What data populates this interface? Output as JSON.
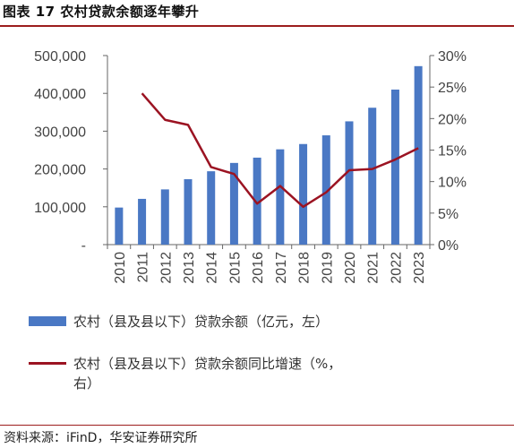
{
  "header": {
    "title": "图表 17 农村贷款余额逐年攀升"
  },
  "chart_data": {
    "type": "bar",
    "categories": [
      "2010",
      "2011",
      "2012",
      "2013",
      "2014",
      "2015",
      "2016",
      "2017",
      "2018",
      "2019",
      "2020",
      "2021",
      "2022",
      "2023"
    ],
    "series": [
      {
        "name": "农村（县及县以下）贷款余额（亿元，左）",
        "type": "bar",
        "axis": "left",
        "values": [
          98000,
          121000,
          146000,
          173000,
          194000,
          216000,
          230000,
          252000,
          266000,
          289000,
          326000,
          362000,
          410000,
          472000
        ]
      },
      {
        "name": "农村（县及县以下）贷款余额同比增速（%，右）",
        "type": "line",
        "axis": "right",
        "values": [
          null,
          24.0,
          19.8,
          19.0,
          12.3,
          11.2,
          6.5,
          9.3,
          6.0,
          8.3,
          11.8,
          12.0,
          13.5,
          15.3
        ]
      }
    ],
    "y_left": {
      "ylim": [
        0,
        500000
      ],
      "ticks": [
        "-",
        "100,000",
        "200,000",
        "300,000",
        "400,000",
        "500,000"
      ]
    },
    "y_right": {
      "ylim": [
        0,
        30
      ],
      "ticks": [
        "0%",
        "5%",
        "10%",
        "15%",
        "20%",
        "25%",
        "30%"
      ]
    },
    "grid": false,
    "legend_position": "bottom",
    "colors": {
      "bar": "#4a78c4",
      "line": "#9b1322",
      "axis": "#666666"
    }
  },
  "legend": {
    "items": [
      {
        "label": "农村（县及县以下）贷款余额（亿元，左）"
      },
      {
        "label": "农村（县及县以下）贷款余额同比增速（%，\n右）"
      }
    ]
  },
  "footer": {
    "source": "资料来源：iFinD，华安证券研究所"
  }
}
